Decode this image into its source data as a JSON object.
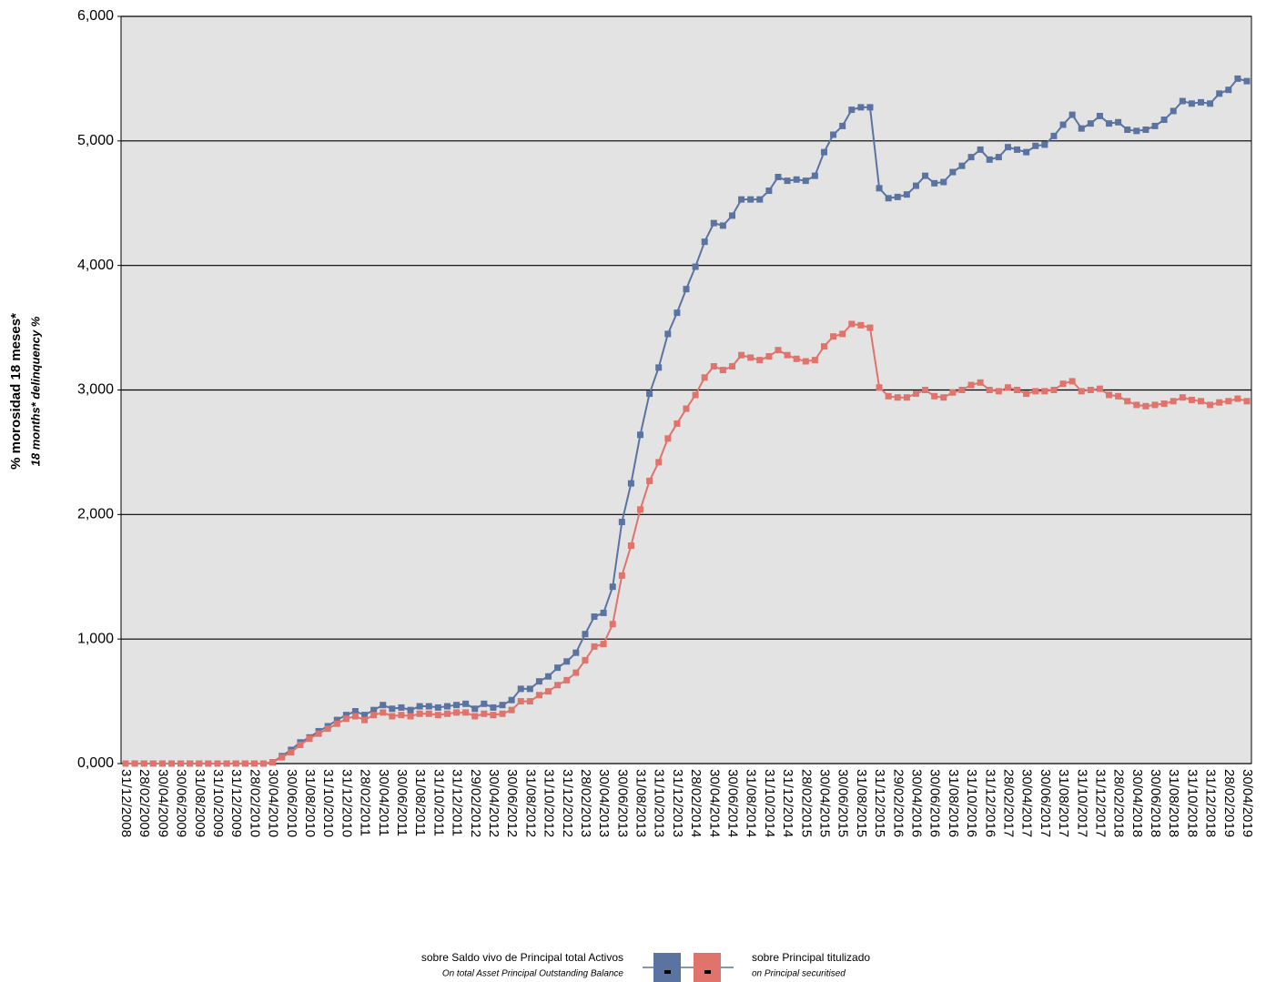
{
  "chart_data": {
    "type": "line",
    "ylabel": "% morosidad 18 meses*",
    "ylabel_en": "18 months* delinquency %",
    "categories": [
      "31/12/2008",
      null,
      "28/02/2009",
      null,
      "30/04/2009",
      null,
      "30/06/2009",
      null,
      "31/08/2009",
      null,
      "31/10/2009",
      null,
      "31/12/2009",
      null,
      "28/02/2010",
      null,
      "30/04/2010",
      null,
      "30/06/2010",
      null,
      "31/08/2010",
      null,
      "31/10/2010",
      null,
      "31/12/2010",
      null,
      "28/02/2011",
      null,
      "30/04/2011",
      null,
      "30/06/2011",
      null,
      "31/08/2011",
      null,
      "31/10/2011",
      null,
      "31/12/2011",
      null,
      "29/02/2012",
      null,
      "30/04/2012",
      null,
      "30/06/2012",
      null,
      "31/08/2012",
      null,
      "31/10/2012",
      null,
      "31/12/2012",
      null,
      "28/02/2013",
      null,
      "30/04/2013",
      null,
      "30/06/2013",
      null,
      "31/08/2013",
      null,
      "31/10/2013",
      null,
      "31/12/2013",
      null,
      "28/02/2014",
      null,
      "30/04/2014",
      null,
      "30/06/2014",
      null,
      "31/08/2014",
      null,
      "31/10/2014",
      null,
      "31/12/2014",
      null,
      "28/02/2015",
      null,
      "30/04/2015",
      null,
      "30/06/2015",
      null,
      "31/08/2015",
      null,
      "31/12/2015",
      null,
      "29/02/2016",
      null,
      "30/04/2016",
      null,
      "30/06/2016",
      null,
      "31/08/2016",
      null,
      "31/10/2016",
      null,
      "31/12/2016",
      null,
      "28/02/2017",
      null,
      "30/04/2017",
      null,
      "30/06/2017",
      null,
      "31/08/2017",
      null,
      "31/10/2017",
      null,
      "31/12/2017",
      null,
      "28/02/2018",
      null,
      "30/04/2018",
      null,
      "30/06/2018",
      null,
      "31/08/2018",
      null,
      "31/10/2018",
      null,
      "31/12/2018",
      null,
      "28/02/2019",
      null,
      "30/04/2019"
    ],
    "series": [
      {
        "name": "sobre Saldo vivo de Principal total Activos",
        "subname": "On total Asset Principal Outstanding Balance",
        "color": "#5b73a1",
        "values": [
          0,
          0,
          0,
          0,
          0,
          0,
          0,
          0,
          0,
          0,
          0,
          0,
          0,
          0,
          0,
          0,
          0.01,
          0.06,
          0.11,
          0.17,
          0.21,
          0.26,
          0.3,
          0.35,
          0.39,
          0.42,
          0.39,
          0.43,
          0.47,
          0.44,
          0.45,
          0.43,
          0.46,
          0.46,
          0.45,
          0.46,
          0.47,
          0.48,
          0.44,
          0.48,
          0.45,
          0.47,
          0.51,
          0.6,
          0.6,
          0.66,
          0.7,
          0.77,
          0.82,
          0.89,
          1.04,
          1.18,
          1.21,
          1.42,
          1.94,
          2.25,
          2.64,
          2.97,
          3.18,
          3.45,
          3.62,
          3.81,
          3.99,
          4.19,
          4.34,
          4.32,
          4.4,
          4.53,
          4.53,
          4.53,
          4.6,
          4.71,
          4.68,
          4.69,
          4.68,
          4.72,
          4.91,
          5.05,
          5.12,
          5.25,
          5.27,
          5.27,
          4.62,
          4.54,
          4.55,
          4.57,
          4.64,
          4.72,
          4.66,
          4.67,
          4.75,
          4.8,
          4.87,
          4.93,
          4.85,
          4.87,
          4.95,
          4.93,
          4.91,
          4.96,
          4.97,
          5.04,
          5.13,
          5.21,
          5.1,
          5.14,
          5.2,
          5.14,
          5.15,
          5.09,
          5.08,
          5.09,
          5.12,
          5.17,
          5.24,
          5.32,
          5.3,
          5.31,
          5.3,
          5.38,
          5.41,
          5.5,
          5.48
        ]
      },
      {
        "name": "sobre Principal titulizado",
        "subname": "on Principal securitised",
        "color": "#e0736c",
        "values": [
          0,
          0,
          0,
          0,
          0,
          0,
          0,
          0,
          0,
          0,
          0,
          0,
          0,
          0,
          0,
          0,
          0.01,
          0.05,
          0.09,
          0.15,
          0.2,
          0.24,
          0.28,
          0.32,
          0.36,
          0.38,
          0.35,
          0.39,
          0.41,
          0.38,
          0.39,
          0.38,
          0.4,
          0.4,
          0.39,
          0.4,
          0.41,
          0.41,
          0.38,
          0.4,
          0.39,
          0.4,
          0.43,
          0.5,
          0.5,
          0.55,
          0.58,
          0.63,
          0.67,
          0.73,
          0.83,
          0.94,
          0.96,
          1.12,
          1.51,
          1.75,
          2.04,
          2.27,
          2.42,
          2.61,
          2.73,
          2.85,
          2.96,
          3.1,
          3.19,
          3.16,
          3.19,
          3.28,
          3.26,
          3.24,
          3.27,
          3.32,
          3.28,
          3.25,
          3.23,
          3.24,
          3.35,
          3.43,
          3.45,
          3.53,
          3.52,
          3.5,
          3.02,
          2.95,
          2.94,
          2.94,
          2.97,
          3.0,
          2.95,
          2.94,
          2.98,
          3.0,
          3.04,
          3.06,
          3.0,
          2.99,
          3.02,
          3.0,
          2.97,
          2.99,
          2.99,
          3.0,
          3.05,
          3.07,
          2.99,
          3.0,
          3.01,
          2.96,
          2.95,
          2.91,
          2.88,
          2.87,
          2.88,
          2.89,
          2.91,
          2.94,
          2.92,
          2.91,
          2.88,
          2.9,
          2.91,
          2.93,
          2.91
        ]
      }
    ],
    "ylim": [
      0,
      6
    ],
    "yticks": [
      {
        "value": 0,
        "label": "0,000"
      },
      {
        "value": 1,
        "label": "1,000"
      },
      {
        "value": 2,
        "label": "2,000"
      },
      {
        "value": 3,
        "label": "3,000"
      },
      {
        "value": 4,
        "label": "4,000"
      },
      {
        "value": 5,
        "label": "5,000"
      },
      {
        "value": 6,
        "label": "6,000"
      }
    ],
    "grid": true,
    "legend": "bottom"
  }
}
